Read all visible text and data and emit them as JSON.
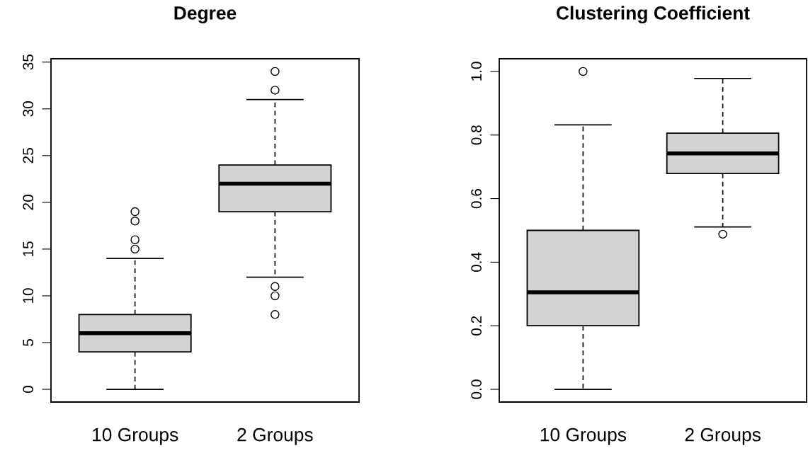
{
  "chart_data": [
    {
      "type": "box",
      "title": "Degree",
      "categories": [
        "10 Groups",
        "2 Groups"
      ],
      "ylim": [
        -1.36,
        35.36
      ],
      "yticks": [
        0,
        5,
        10,
        15,
        20,
        25,
        30,
        35
      ],
      "grid": false,
      "color": "#d3d3d3",
      "boxes": [
        {
          "low": 0,
          "q1": 4,
          "median": 6,
          "q3": 8,
          "high": 14,
          "outliers": [
            15,
            16,
            18,
            19
          ]
        },
        {
          "low": 12,
          "q1": 19,
          "median": 22,
          "q3": 24,
          "high": 31,
          "outliers": [
            8,
            10,
            11,
            32,
            34
          ]
        }
      ]
    },
    {
      "type": "box",
      "title": "Clustering Coefficient",
      "categories": [
        "10 Groups",
        "2 Groups"
      ],
      "ylim": [
        -0.04,
        1.04
      ],
      "yticks": [
        {
          "value": 0,
          "label": "0.0"
        },
        0.2,
        0.4,
        0.6,
        0.8,
        {
          "value": 1,
          "label": "1.0"
        }
      ],
      "grid": false,
      "color": "#d3d3d3",
      "boxes": [
        {
          "low": 0,
          "q1": 0.2,
          "median": 0.305,
          "q3": 0.5,
          "high": 0.832,
          "outliers": [
            1.0
          ]
        },
        {
          "low": 0.511,
          "q1": 0.679,
          "median": 0.742,
          "q3": 0.806,
          "high": 0.978,
          "outliers": [
            0.488
          ]
        }
      ]
    }
  ]
}
